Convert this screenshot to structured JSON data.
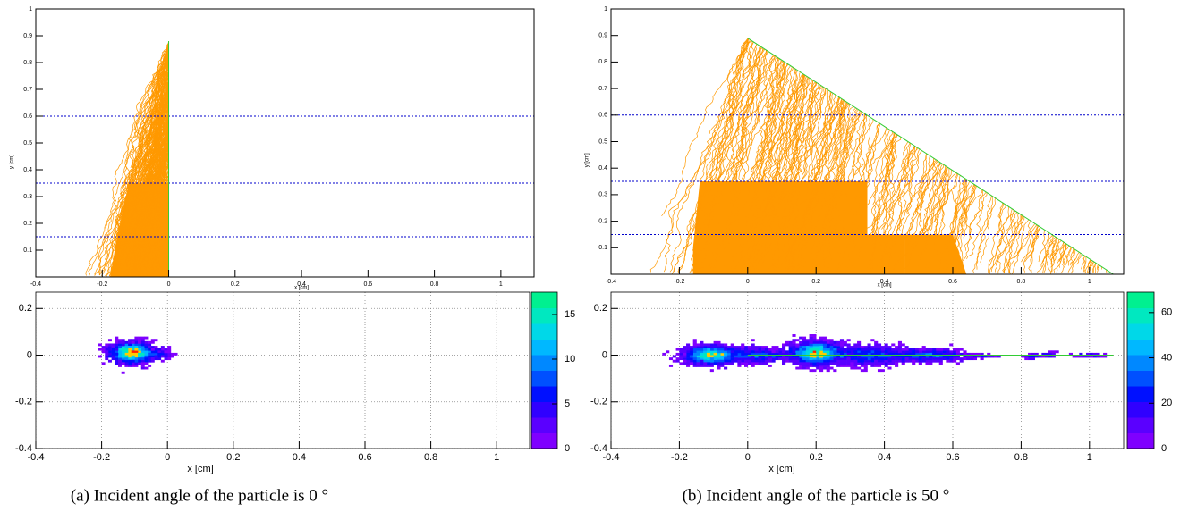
{
  "chart_data": [
    {
      "type": "track",
      "xlabel": "x [cm]",
      "ylabel": "y [cm]",
      "xlim": [
        -0.4,
        1.1
      ],
      "ylim": [
        0,
        1
      ],
      "xticks": [
        -0.4,
        -0.2,
        0,
        0.2,
        0.4,
        0.6,
        0.8,
        1
      ],
      "yticks": [
        0.1,
        0.2,
        0.3,
        0.4,
        0.5,
        0.6,
        0.7,
        0.8,
        0.9,
        1
      ],
      "hlines": [
        0.15,
        0.35,
        0.6
      ],
      "incident": {
        "x": [
          0,
          0
        ],
        "y": [
          0,
          0.88
        ]
      },
      "track_color": "#ff9900",
      "line_color": "#33cc33",
      "hline_color": "#0000cc"
    },
    {
      "type": "heatmap",
      "xlabel": "x [cm]",
      "xlim": [
        -0.4,
        1.1
      ],
      "ylim": [
        -0.4,
        0.27
      ],
      "xticks": [
        -0.4,
        -0.2,
        0,
        0.2,
        0.4,
        0.6,
        0.8,
        1
      ],
      "yticks": [
        -0.4,
        -0.2,
        0,
        0.2
      ],
      "zlim": [
        0,
        17.5
      ],
      "zticks": [
        0,
        5,
        10,
        15
      ],
      "grid": true,
      "palette": [
        "#7f00ff",
        "#5a00ff",
        "#3000ff",
        "#0010ff",
        "#0050ff",
        "#0088ff",
        "#00b8ff",
        "#00d8e8",
        "#00e8c0",
        "#00f090"
      ]
    },
    {
      "type": "track",
      "xlabel": "x [cm]",
      "ylabel": "y [cm]",
      "xlim": [
        -0.4,
        1.1
      ],
      "ylim": [
        0,
        1
      ],
      "xticks": [
        -0.4,
        -0.2,
        0,
        0.2,
        0.4,
        0.6,
        0.8,
        1
      ],
      "yticks": [
        0.1,
        0.2,
        0.3,
        0.4,
        0.5,
        0.6,
        0.7,
        0.8,
        0.9,
        1
      ],
      "hlines": [
        0.15,
        0.35,
        0.6
      ],
      "incident": {
        "x": [
          0,
          1.07
        ],
        "y": [
          0.89,
          0
        ]
      },
      "track_color": "#ff9900",
      "line_color": "#33cc33",
      "hline_color": "#0000cc"
    },
    {
      "type": "heatmap",
      "xlabel": "x [cm]",
      "xlim": [
        -0.4,
        1.1
      ],
      "ylim": [
        -0.4,
        0.27
      ],
      "xticks": [
        -0.4,
        -0.2,
        0,
        0.2,
        0.4,
        0.6,
        0.8,
        1
      ],
      "yticks": [
        -0.4,
        -0.2,
        0,
        0.2
      ],
      "zlim": [
        0,
        69
      ],
      "zticks": [
        0,
        20,
        40,
        60
      ],
      "grid": true,
      "palette": [
        "#7f00ff",
        "#5a00ff",
        "#3000ff",
        "#0010ff",
        "#0050ff",
        "#0088ff",
        "#00b8ff",
        "#00d8e8",
        "#00e8c0",
        "#00f090"
      ]
    }
  ],
  "captions": [
    "(a) Incident angle of the particle is 0 °",
    "(b) Incident angle of the particle is 50 °"
  ]
}
